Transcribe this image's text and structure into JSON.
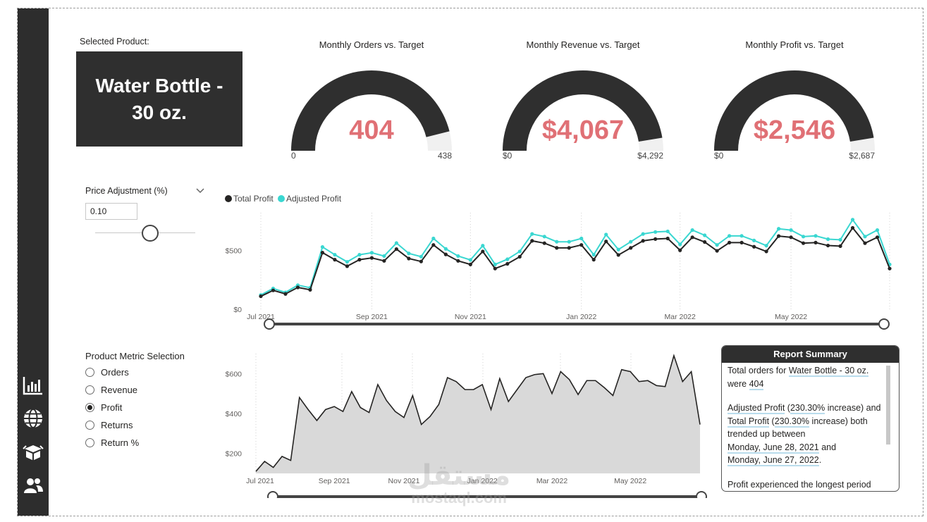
{
  "selected_product": {
    "label": "Selected Product:",
    "value": "Water Bottle - 30 oz."
  },
  "gauges": [
    {
      "title": "Monthly Orders vs. Target",
      "value": "404",
      "min": "0",
      "max": "438",
      "fraction": 0.922
    },
    {
      "title": "Monthly Revenue vs. Target",
      "value": "$4,067",
      "min": "$0",
      "max": "$4,292",
      "fraction": 0.948
    },
    {
      "title": "Monthly Profit vs. Target",
      "value": "$2,546",
      "min": "$0",
      "max": "$2,687",
      "fraction": 0.948
    }
  ],
  "price_adjustment": {
    "label": "Price Adjustment (%)",
    "value": "0.10",
    "slider_fraction": 0.55
  },
  "metric_selection": {
    "label": "Product Metric Selection",
    "options": [
      "Orders",
      "Revenue",
      "Profit",
      "Returns",
      "Return %"
    ],
    "selected": "Profit"
  },
  "report_summary": {
    "title": "Report Summary",
    "p1_pre": "Total orders for ",
    "p1_product": "Water Bottle - 30 oz.",
    "p1_mid": " were ",
    "p1_value": "404",
    "p2_adj": "Adjusted Profit",
    "p2_adj_pre": " (",
    "p2_adj_pct": "230.30%",
    "p2_adj_post": " increase) and",
    "p2_tot": "Total Profit",
    "p2_tot_pre": " (",
    "p2_tot_pct": "230.30%",
    "p2_tot_post": " increase) both trended up between",
    "p2_start": "Monday, June 28, 2021",
    "p2_and": " and",
    "p2_end": "Monday, June 27, 2022",
    "p2_dot": ".",
    "p3": "Profit experienced the longest period"
  },
  "watermark": {
    "arabic": "مستقل",
    "latin": "mostaql.com"
  },
  "colors": {
    "dark": "#2f2f2f",
    "accent": "#e07075",
    "teal": "#3ad7d1",
    "track": "#f0f0f0"
  },
  "icons": [
    "bar-chart-icon",
    "globe-icon",
    "box-icon",
    "people-icon"
  ],
  "chart_data": [
    {
      "type": "line",
      "title": "",
      "legend": "top-left",
      "xlabel": "",
      "ylabel": "",
      "x_ticks": [
        "Jul 2021",
        "Sep 2021",
        "Nov 2021",
        "Jan 2022",
        "Mar 2022",
        "May 2022"
      ],
      "y_ticks": [
        "$0",
        "$500"
      ],
      "ylim": [
        0,
        800
      ],
      "series": [
        {
          "name": "Total Profit",
          "color": "#252423",
          "values": [
            110,
            160,
            130,
            185,
            165,
            480,
            420,
            365,
            420,
            435,
            410,
            510,
            430,
            405,
            545,
            465,
            410,
            380,
            490,
            345,
            385,
            445,
            580,
            560,
            520,
            520,
            545,
            420,
            575,
            460,
            520,
            580,
            595,
            600,
            500,
            610,
            570,
            495,
            565,
            565,
            530,
            490,
            620,
            610,
            560,
            565,
            540,
            535,
            690,
            560,
            610,
            345
          ]
        },
        {
          "name": "Adjusted Profit",
          "color": "#3ad7d1",
          "values": [
            121,
            176,
            143,
            204,
            182,
            528,
            462,
            402,
            462,
            479,
            451,
            561,
            473,
            446,
            600,
            512,
            451,
            418,
            539,
            380,
            424,
            490,
            638,
            616,
            572,
            572,
            600,
            462,
            633,
            506,
            572,
            638,
            655,
            660,
            550,
            671,
            627,
            545,
            622,
            622,
            583,
            539,
            682,
            671,
            616,
            622,
            594,
            589,
            759,
            616,
            671,
            380
          ]
        }
      ]
    },
    {
      "type": "area",
      "title": "",
      "xlabel": "",
      "ylabel": "",
      "x_ticks": [
        "Jul 2021",
        "Sep 2021",
        "Nov 2021",
        "Jan 2022",
        "Mar 2022",
        "May 2022"
      ],
      "y_ticks": [
        "$200",
        "$400",
        "$600"
      ],
      "ylim": [
        100,
        700
      ],
      "series": [
        {
          "name": "Profit",
          "color": "#252423",
          "values": [
            110,
            160,
            130,
            185,
            165,
            480,
            420,
            365,
            420,
            435,
            410,
            510,
            430,
            405,
            545,
            465,
            410,
            380,
            490,
            345,
            385,
            445,
            580,
            560,
            520,
            520,
            545,
            420,
            575,
            460,
            520,
            580,
            595,
            600,
            500,
            610,
            570,
            495,
            565,
            565,
            530,
            490,
            620,
            610,
            560,
            565,
            540,
            535,
            690,
            560,
            610,
            345
          ]
        }
      ]
    }
  ]
}
